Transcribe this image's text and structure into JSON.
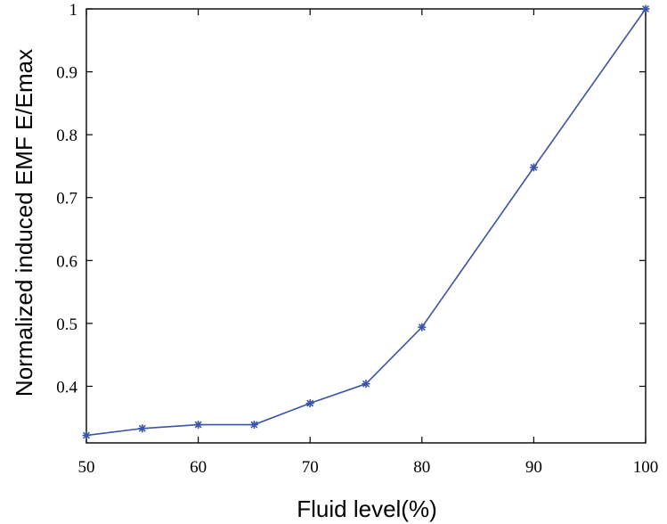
{
  "chart_data": {
    "type": "line",
    "title": "",
    "xlabel": "Fluid level(%)",
    "ylabel": "Normalized induced EMF E/Emax",
    "xlim": [
      50,
      100
    ],
    "ylim": [
      0.31,
      1
    ],
    "xticks": [
      50,
      60,
      70,
      80,
      90,
      100
    ],
    "yticks": [
      0.4,
      0.5,
      0.6,
      0.7,
      0.8,
      0.9,
      1
    ],
    "grid": false,
    "legend": "none",
    "series": [
      {
        "marker": "asterisk",
        "color": "#3a54a8",
        "x": [
          50,
          55,
          60,
          65,
          70,
          75,
          80,
          90,
          100
        ],
        "y": [
          0.322,
          0.333,
          0.339,
          0.339,
          0.373,
          0.404,
          0.494,
          0.748,
          1.0
        ]
      }
    ]
  }
}
